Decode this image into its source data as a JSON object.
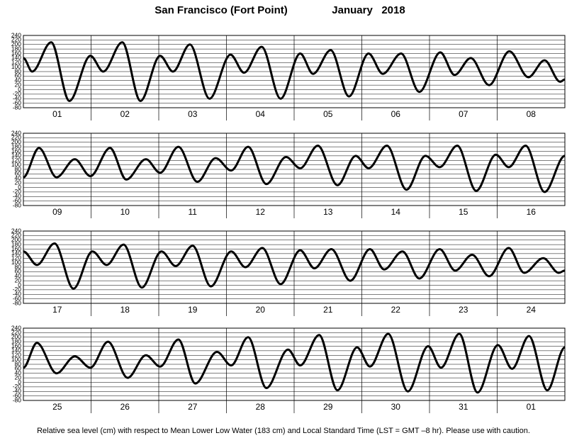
{
  "title": "San Francisco (Fort Point)",
  "date": "January   2018",
  "footer": "Relative sea level (cm) with respect to Mean Lower Low Water (183 cm) and Local Standard Time (LST = GMT –8 hr). Please use with caution.",
  "chart_data": [
    {
      "type": "line",
      "categories": [
        "01",
        "02",
        "03",
        "04",
        "05",
        "06",
        "07",
        "08"
      ],
      "xlim": [
        0,
        8
      ],
      "ylim": [
        -80,
        240
      ],
      "yticks": [
        240,
        220,
        200,
        180,
        160,
        140,
        120,
        100,
        80,
        60,
        40,
        20,
        0,
        -20,
        -40,
        -60,
        -80
      ],
      "grid": true,
      "series": [
        {
          "color": "#000000",
          "x": [
            0,
            0.13,
            0.41,
            0.68,
            0.99,
            1.18,
            1.46,
            1.73,
            2.02,
            2.21,
            2.46,
            2.75,
            3.06,
            3.26,
            3.52,
            3.8,
            4.09,
            4.28,
            4.54,
            4.81,
            5.1,
            5.31,
            5.58,
            5.85,
            6.16,
            6.37,
            6.61,
            6.88,
            7.18,
            7.46,
            7.7,
            7.93,
            8
          ],
          "values": [
            140,
            80,
            210,
            -50,
            150,
            80,
            210,
            -50,
            150,
            80,
            200,
            -40,
            155,
            75,
            190,
            -40,
            160,
            70,
            175,
            -30,
            160,
            70,
            160,
            -10,
            165,
            65,
            140,
            20,
            170,
            55,
            130,
            35,
            45
          ]
        }
      ]
    },
    {
      "type": "line",
      "categories": [
        "09",
        "10",
        "11",
        "12",
        "13",
        "14",
        "15",
        "16"
      ],
      "xlim": [
        0,
        8
      ],
      "ylim": [
        -80,
        240
      ],
      "yticks": [
        240,
        220,
        200,
        180,
        160,
        140,
        120,
        100,
        80,
        60,
        40,
        20,
        0,
        -20,
        -40,
        -60,
        -80
      ],
      "grid": true,
      "series": [
        {
          "color": "#000000",
          "x": [
            0,
            0.23,
            0.49,
            0.76,
            0.99,
            1.28,
            1.52,
            1.81,
            2.02,
            2.29,
            2.57,
            2.84,
            3.07,
            3.32,
            3.59,
            3.88,
            4.09,
            4.35,
            4.64,
            4.91,
            5.1,
            5.37,
            5.66,
            5.94,
            6.15,
            6.41,
            6.69,
            6.98,
            7.17,
            7.42,
            7.7,
            8
          ],
          "values": [
            45,
            175,
            45,
            125,
            50,
            175,
            35,
            125,
            65,
            180,
            25,
            130,
            75,
            180,
            15,
            135,
            85,
            185,
            10,
            140,
            85,
            185,
            -10,
            140,
            90,
            185,
            -15,
            145,
            90,
            185,
            -20,
            140
          ]
        }
      ]
    },
    {
      "type": "line",
      "categories": [
        "17",
        "18",
        "19",
        "20",
        "21",
        "22",
        "23",
        "24"
      ],
      "xlim": [
        0,
        8
      ],
      "ylim": [
        -80,
        240
      ],
      "yticks": [
        240,
        220,
        200,
        180,
        160,
        140,
        120,
        100,
        80,
        60,
        40,
        20,
        0,
        -20,
        -40,
        -60,
        -80
      ],
      "grid": true,
      "series": [
        {
          "color": "#000000",
          "x": [
            0,
            0.2,
            0.46,
            0.74,
            1.02,
            1.23,
            1.48,
            1.75,
            2.04,
            2.25,
            2.5,
            2.77,
            3.07,
            3.28,
            3.53,
            3.8,
            4.09,
            4.3,
            4.55,
            4.83,
            5.12,
            5.33,
            5.6,
            5.85,
            6.15,
            6.38,
            6.63,
            6.88,
            7.17,
            7.4,
            7.68,
            7.91,
            8
          ],
          "values": [
            150,
            90,
            185,
            -15,
            150,
            90,
            180,
            -10,
            150,
            85,
            175,
            -5,
            150,
            80,
            165,
            5,
            155,
            75,
            160,
            20,
            160,
            70,
            150,
            30,
            160,
            65,
            135,
            40,
            165,
            55,
            120,
            55,
            65
          ]
        }
      ]
    },
    {
      "type": "line",
      "categories": [
        "25",
        "26",
        "27",
        "28",
        "29",
        "30",
        "31",
        "01"
      ],
      "xlim": [
        0,
        8
      ],
      "ylim": [
        -80,
        240
      ],
      "yticks": [
        240,
        220,
        200,
        180,
        160,
        140,
        120,
        100,
        80,
        60,
        40,
        20,
        0,
        -20,
        -40,
        -60,
        -80
      ],
      "grid": true,
      "series": [
        {
          "color": "#000000",
          "x": [
            0,
            0.2,
            0.49,
            0.76,
            0.99,
            1.25,
            1.54,
            1.81,
            2.02,
            2.29,
            2.54,
            2.86,
            3.07,
            3.32,
            3.59,
            3.91,
            4.09,
            4.37,
            4.64,
            4.93,
            5.12,
            5.39,
            5.68,
            5.98,
            6.17,
            6.44,
            6.71,
            7.01,
            7.22,
            7.47,
            7.74,
            8
          ],
          "values": [
            65,
            175,
            40,
            115,
            65,
            180,
            20,
            120,
            70,
            190,
            -5,
            135,
            75,
            200,
            -25,
            145,
            75,
            210,
            -35,
            155,
            70,
            215,
            -40,
            160,
            65,
            215,
            -45,
            165,
            60,
            205,
            -35,
            155
          ]
        }
      ]
    }
  ]
}
